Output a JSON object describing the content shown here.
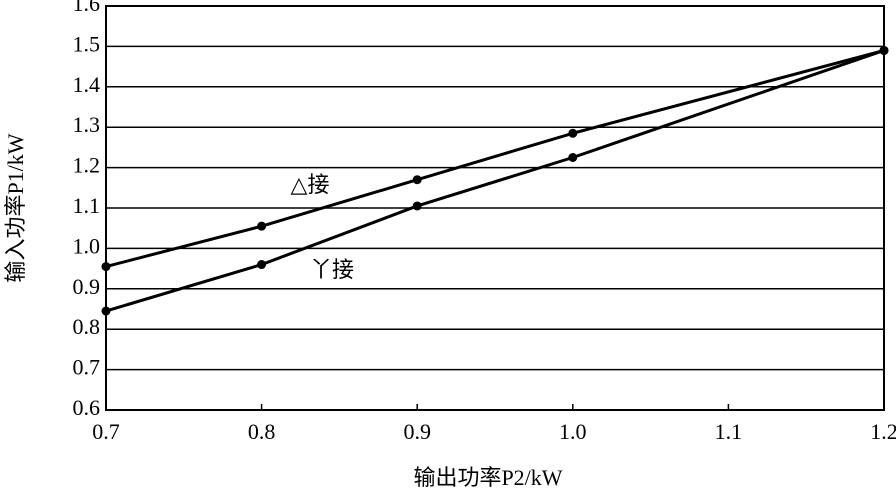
{
  "chart_data": {
    "type": "line",
    "x": [
      0.7,
      0.8,
      0.9,
      1.0,
      1.2
    ],
    "series": [
      {
        "name": "△接",
        "color": "#000000",
        "values": [
          0.955,
          1.055,
          1.17,
          1.285,
          1.49
        ]
      },
      {
        "name": "丫接",
        "color": "#000000",
        "values": [
          0.845,
          0.96,
          1.105,
          1.225,
          1.49
        ]
      }
    ],
    "xlabel": "输出功率P2/kW",
    "ylabel": "输入功率P1/kW",
    "xlim": [
      0.7,
      1.2
    ],
    "xticks": [
      0.7,
      0.8,
      0.9,
      {
        "value": 1,
        "label": "1.0"
      },
      1.1,
      1.2
    ],
    "ylim": [
      0.6,
      1.6
    ],
    "yticks": [
      0.6,
      0.7,
      0.8,
      0.9,
      {
        "value": 1,
        "label": "1.0"
      },
      1.1,
      1.2,
      1.3,
      1.4,
      1.5,
      1.6
    ],
    "grid": true
  }
}
